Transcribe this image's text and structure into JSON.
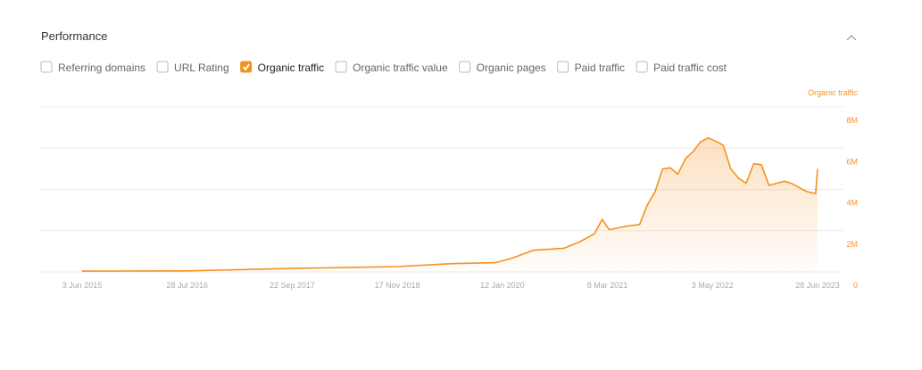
{
  "header": {
    "title": "Performance"
  },
  "toggles": [
    {
      "label": "Referring domains",
      "checked": false
    },
    {
      "label": "URL Rating",
      "checked": false
    },
    {
      "label": "Organic traffic",
      "checked": true
    },
    {
      "label": "Organic traffic value",
      "checked": false
    },
    {
      "label": "Organic pages",
      "checked": false
    },
    {
      "label": "Paid traffic",
      "checked": false
    },
    {
      "label": "Paid traffic cost",
      "checked": false
    }
  ],
  "chart_data": {
    "type": "area",
    "x": [
      "2015-06-03",
      "2016-07-28",
      "2017-09-22",
      "2018-11-17",
      "2019-06-15",
      "2019-12-15",
      "2020-02-15",
      "2020-05-15",
      "2020-09-15",
      "2020-11-15",
      "2021-01-15",
      "2021-02-15",
      "2021-03-15",
      "2021-05-15",
      "2021-07-15",
      "2021-08-15",
      "2021-09-15",
      "2021-10-15",
      "2021-11-15",
      "2021-12-15",
      "2022-01-15",
      "2022-02-15",
      "2022-03-15",
      "2022-04-15",
      "2022-05-15",
      "2022-06-15",
      "2022-07-15",
      "2022-08-15",
      "2022-09-15",
      "2022-10-15",
      "2022-11-15",
      "2022-12-15",
      "2023-02-15",
      "2023-03-15",
      "2023-05-15",
      "2023-06-20",
      "2023-06-28"
    ],
    "series": [
      {
        "name": "Organic traffic",
        "color": "#f5921e",
        "values": [
          40000,
          50000,
          170000,
          260000,
          400000,
          450000,
          650000,
          1050000,
          1150000,
          1450000,
          1850000,
          2550000,
          2050000,
          2200000,
          2300000,
          3250000,
          3900000,
          5000000,
          5050000,
          4750000,
          5500000,
          5850000,
          6300000,
          6500000,
          6350000,
          6150000,
          5000000,
          4550000,
          4300000,
          5250000,
          5200000,
          4200000,
          4400000,
          4300000,
          3900000,
          3800000,
          5000000
        ]
      }
    ],
    "xlim": [
      "2015-06-03",
      "2023-06-28"
    ],
    "xticks": [
      {
        "value": "2015-06-03",
        "label": "3 Jun 2015"
      },
      {
        "value": "2016-07-28",
        "label": "28 Jul 2016"
      },
      {
        "value": "2017-09-22",
        "label": "22 Sep 2017"
      },
      {
        "value": "2018-11-17",
        "label": "17 Nov 2018"
      },
      {
        "value": "2020-01-12",
        "label": "12 Jan 2020"
      },
      {
        "value": "2021-03-08",
        "label": "8 Mar 2021"
      },
      {
        "value": "2022-05-03",
        "label": "3 May 2022"
      },
      {
        "value": "2023-06-28",
        "label": "28 Jun 2023"
      }
    ],
    "ylim": [
      0,
      8000000
    ],
    "yticks": [
      0,
      {
        "value": 2000000,
        "label": "2M"
      },
      {
        "value": 4000000,
        "label": "4M"
      },
      {
        "value": 6000000,
        "label": "6M"
      },
      {
        "value": 8000000,
        "label": "8M"
      }
    ],
    "grid": true
  }
}
